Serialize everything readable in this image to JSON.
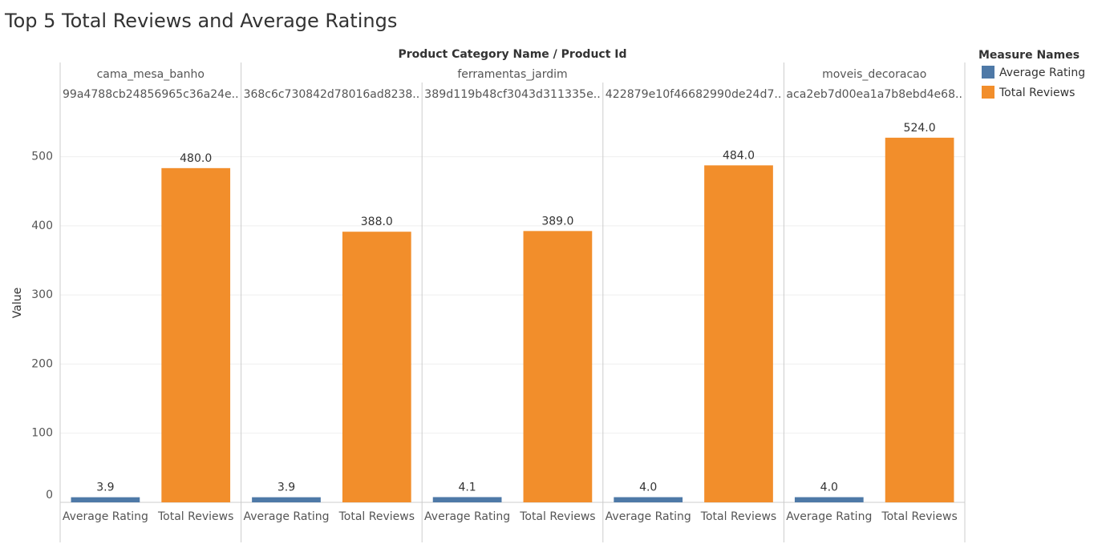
{
  "chart_data": {
    "type": "bar",
    "title": "Top 5 Total Reviews and Average Ratings",
    "header_title": "Product Category Name  /  Product Id",
    "y_label": "Value",
    "legend_title": "Measure Names",
    "groups": [
      {
        "label": "cama_mesa_banho",
        "categories": [
          "99a4788cb24856965c36a24e.."
        ]
      },
      {
        "label": "ferramentas_jardim",
        "categories": [
          "368c6c730842d78016ad8238..",
          "389d119b48cf3043d311335e..",
          "422879e10f46682990de24d7.."
        ]
      },
      {
        "label": "moveis_decoracao",
        "categories": [
          "aca2eb7d00ea1a7b8ebd4e68.."
        ]
      }
    ],
    "series": [
      {
        "name": "Average Rating",
        "color": "#4e79a7",
        "values": [
          3.9,
          3.9,
          4.1,
          4.0,
          4.0
        ],
        "value_labels": [
          "3.9",
          "3.9",
          "4.1",
          "4.0",
          "4.0"
        ]
      },
      {
        "name": "Total Reviews",
        "color": "#f28e2b",
        "values": [
          480,
          388,
          389,
          484,
          524
        ],
        "value_labels": [
          "480.0",
          "388.0",
          "389.0",
          "484.0",
          "524.0"
        ]
      }
    ],
    "ylim": [
      0,
      576
    ],
    "yticks": [
      0,
      100,
      200,
      300,
      400,
      500
    ],
    "grid": true
  }
}
